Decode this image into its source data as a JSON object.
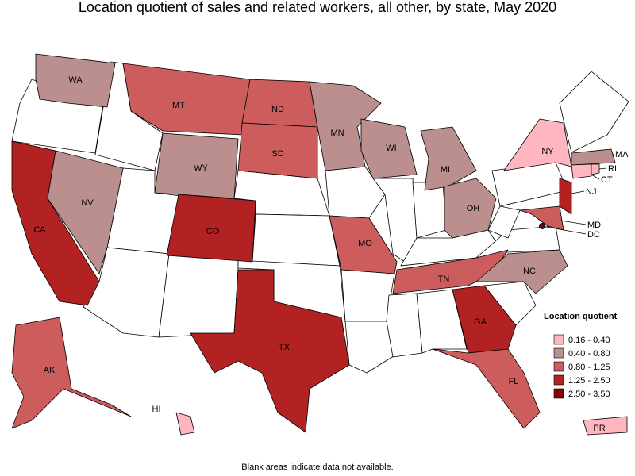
{
  "title": "Location quotient of sales and related workers, all other, by state, May 2020",
  "legend": {
    "title": "Location quotient",
    "entries": [
      {
        "label": "0.16 - 0.40",
        "color": "#ffb6c1"
      },
      {
        "label": "0.40 - 0.80",
        "color": "#bc8f8f"
      },
      {
        "label": "0.80 - 1.25",
        "color": "#cd5c5c"
      },
      {
        "label": "1.25 - 2.50",
        "color": "#b22222"
      },
      {
        "label": "2.50 - 3.50",
        "color": "#8b0000"
      }
    ]
  },
  "states": [
    {
      "abbr": "WA",
      "bin": 1
    },
    {
      "abbr": "CA",
      "bin": 3
    },
    {
      "abbr": "NV",
      "bin": 1
    },
    {
      "abbr": "MT",
      "bin": 2
    },
    {
      "abbr": "WY",
      "bin": 1
    },
    {
      "abbr": "CO",
      "bin": 3
    },
    {
      "abbr": "ND",
      "bin": 2
    },
    {
      "abbr": "SD",
      "bin": 2
    },
    {
      "abbr": "TX",
      "bin": 3
    },
    {
      "abbr": "MN",
      "bin": 1
    },
    {
      "abbr": "MO",
      "bin": 2
    },
    {
      "abbr": "WI",
      "bin": 1
    },
    {
      "abbr": "MI",
      "bin": 1
    },
    {
      "abbr": "OH",
      "bin": 1
    },
    {
      "abbr": "TN",
      "bin": 2
    },
    {
      "abbr": "GA",
      "bin": 3
    },
    {
      "abbr": "FL",
      "bin": 2
    },
    {
      "abbr": "NC",
      "bin": 1
    },
    {
      "abbr": "NY",
      "bin": 0
    },
    {
      "abbr": "NJ",
      "bin": 3
    },
    {
      "abbr": "MD",
      "bin": 2
    },
    {
      "abbr": "MA",
      "bin": 1
    },
    {
      "abbr": "CT",
      "bin": 0
    },
    {
      "abbr": "RI",
      "bin": 0
    },
    {
      "abbr": "AK",
      "bin": 2
    },
    {
      "abbr": "HI",
      "bin": 0
    },
    {
      "abbr": "PR",
      "bin": 0
    },
    {
      "abbr": "DC",
      "bin": 4
    }
  ],
  "footnote": "Blank areas indicate data not available."
}
